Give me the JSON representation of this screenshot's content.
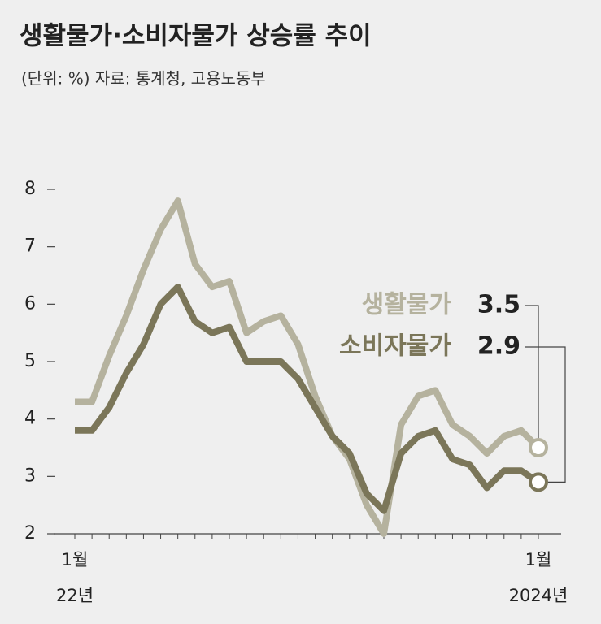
{
  "chart_data": {
    "type": "line",
    "title": "생활물가·소비자물가 상승률 추이",
    "subtitle": "(단위: %) 자료: 통계청, 고용노동부",
    "categories": [
      "1월",
      null,
      null,
      null,
      null,
      null,
      null,
      null,
      null,
      null,
      null,
      null,
      null,
      null,
      null,
      null,
      null,
      null,
      null,
      null,
      null,
      null,
      null,
      null,
      null,
      null,
      null,
      "1월"
    ],
    "annotations": [
      "22년",
      "2024년"
    ],
    "series": [
      {
        "name": "생활물가",
        "color": "#b5b29e",
        "values": [
          4.3,
          4.3,
          5.1,
          5.8,
          6.6,
          7.3,
          7.8,
          6.7,
          6.3,
          6.4,
          5.5,
          5.7,
          5.8,
          5.3,
          4.4,
          3.7,
          3.3,
          2.5,
          2.0,
          3.9,
          4.4,
          4.5,
          3.9,
          3.7,
          3.4,
          3.7,
          3.8,
          3.5
        ]
      },
      {
        "name": "소비자물가",
        "color": "#7b7659",
        "values": [
          3.8,
          3.8,
          4.2,
          4.8,
          5.3,
          6.0,
          6.3,
          5.7,
          5.5,
          5.6,
          5.0,
          5.0,
          5.0,
          4.7,
          4.2,
          3.7,
          3.4,
          2.7,
          2.4,
          3.4,
          3.7,
          3.8,
          3.3,
          3.2,
          2.8,
          3.1,
          3.1,
          2.9
        ]
      }
    ],
    "ylim": [
      2,
      8
    ],
    "yticks": [
      2,
      3,
      4,
      5,
      6,
      7,
      8
    ],
    "grid": false
  }
}
